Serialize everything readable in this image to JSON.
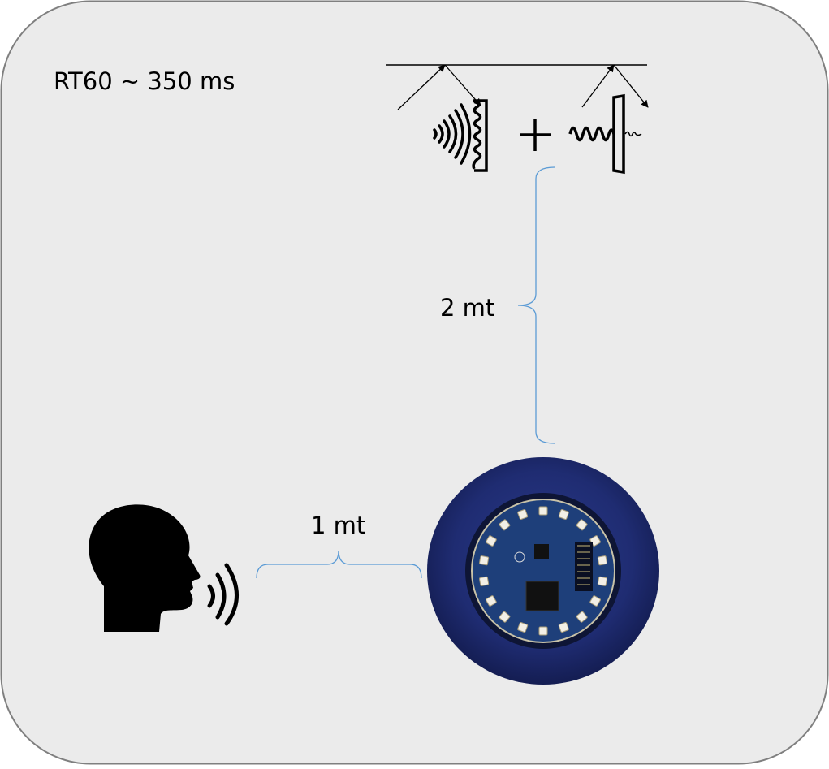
{
  "annotations": {
    "reverberation_time": "RT60 ~ 350 ms",
    "distance_to_wall": "2 mt",
    "distance_to_speaker": "1 mt"
  },
  "colors": {
    "room_background": "#ebebeb",
    "room_border": "#7f7f7f",
    "bracket": "#5b9bd5",
    "device_case": "#1d2a6e",
    "pcb": "#1e3f7a",
    "led": "#f2efe6"
  },
  "icons": {
    "speaker": "human-head-speaking-icon",
    "sound_waves": "sound-waves-icon",
    "diffuse_reflection": "diffusion-panel-icon",
    "absorption": "absorption-panel-icon",
    "plus": "plus-icon",
    "device": "microphone-array-device-icon"
  }
}
